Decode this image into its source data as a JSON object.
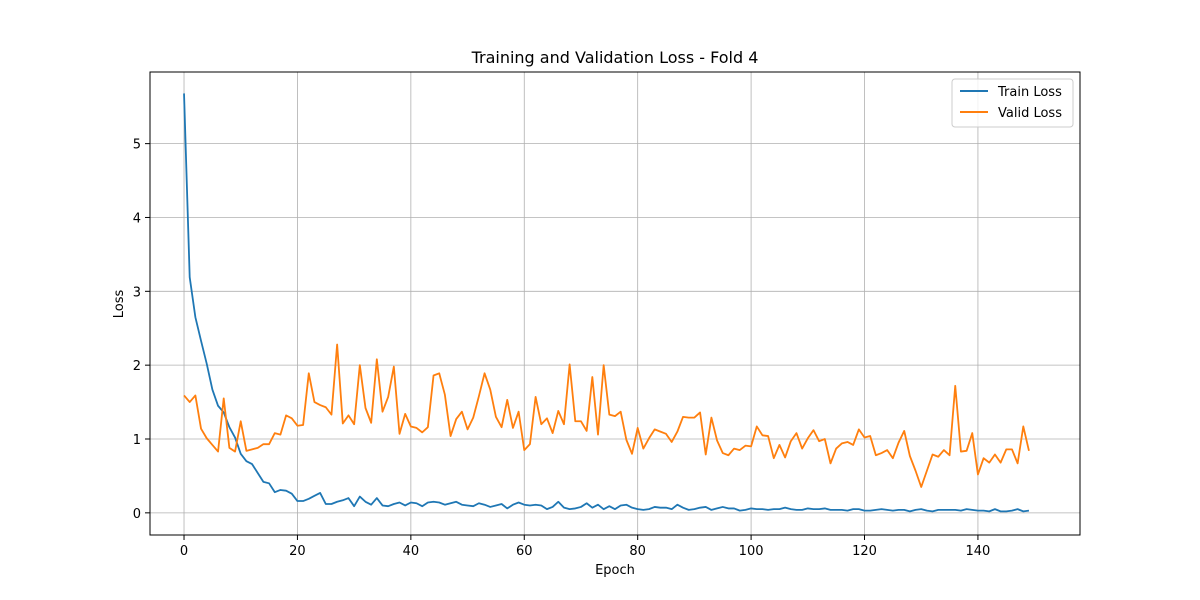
{
  "chart_data": {
    "type": "line",
    "title": "Training and Validation Loss - Fold 4",
    "xlabel": "Epoch",
    "ylabel": "Loss",
    "xlim": [
      -6,
      158
    ],
    "ylim": [
      -0.3,
      5.97
    ],
    "xticks": [
      0,
      20,
      40,
      60,
      80,
      100,
      120,
      140
    ],
    "yticks": [
      0,
      1,
      2,
      3,
      4,
      5
    ],
    "grid": true,
    "legend_position": "top-right",
    "series": [
      {
        "name": "Train Loss",
        "color": "#1f77b4",
        "values": [
          5.68,
          3.19,
          2.65,
          2.33,
          2.02,
          1.67,
          1.45,
          1.36,
          1.16,
          1.02,
          0.8,
          0.7,
          0.66,
          0.54,
          0.42,
          0.4,
          0.28,
          0.31,
          0.3,
          0.26,
          0.16,
          0.16,
          0.19,
          0.23,
          0.27,
          0.12,
          0.12,
          0.15,
          0.17,
          0.2,
          0.09,
          0.22,
          0.15,
          0.11,
          0.2,
          0.1,
          0.09,
          0.12,
          0.14,
          0.1,
          0.14,
          0.13,
          0.09,
          0.14,
          0.15,
          0.14,
          0.11,
          0.13,
          0.15,
          0.11,
          0.1,
          0.09,
          0.13,
          0.11,
          0.08,
          0.1,
          0.12,
          0.06,
          0.11,
          0.14,
          0.11,
          0.1,
          0.11,
          0.1,
          0.05,
          0.08,
          0.15,
          0.07,
          0.05,
          0.06,
          0.08,
          0.13,
          0.07,
          0.11,
          0.05,
          0.09,
          0.05,
          0.1,
          0.11,
          0.07,
          0.05,
          0.04,
          0.05,
          0.08,
          0.07,
          0.07,
          0.05,
          0.11,
          0.07,
          0.04,
          0.05,
          0.07,
          0.08,
          0.04,
          0.06,
          0.08,
          0.06,
          0.06,
          0.03,
          0.04,
          0.06,
          0.05,
          0.05,
          0.04,
          0.05,
          0.05,
          0.07,
          0.05,
          0.04,
          0.04,
          0.06,
          0.05,
          0.05,
          0.06,
          0.04,
          0.04,
          0.04,
          0.03,
          0.05,
          0.05,
          0.03,
          0.03,
          0.04,
          0.05,
          0.04,
          0.03,
          0.04,
          0.04,
          0.02,
          0.04,
          0.05,
          0.03,
          0.02,
          0.04,
          0.04,
          0.04,
          0.04,
          0.03,
          0.05,
          0.04,
          0.03,
          0.03,
          0.02,
          0.05,
          0.02,
          0.02,
          0.03,
          0.05,
          0.02,
          0.03
        ]
      },
      {
        "name": "Valid Loss",
        "color": "#ff7f0e",
        "values": [
          1.59,
          1.5,
          1.59,
          1.14,
          1.01,
          0.92,
          0.83,
          1.55,
          0.88,
          0.83,
          1.24,
          0.84,
          0.86,
          0.88,
          0.93,
          0.93,
          1.08,
          1.06,
          1.32,
          1.28,
          1.18,
          1.19,
          1.89,
          1.5,
          1.46,
          1.43,
          1.33,
          2.28,
          1.21,
          1.32,
          1.2,
          2.0,
          1.42,
          1.22,
          2.08,
          1.37,
          1.57,
          1.98,
          1.07,
          1.34,
          1.17,
          1.15,
          1.09,
          1.16,
          1.86,
          1.89,
          1.6,
          1.04,
          1.27,
          1.37,
          1.13,
          1.29,
          1.58,
          1.89,
          1.67,
          1.3,
          1.16,
          1.53,
          1.15,
          1.37,
          0.85,
          0.93,
          1.57,
          1.2,
          1.28,
          1.08,
          1.38,
          1.2,
          2.01,
          1.24,
          1.24,
          1.11,
          1.84,
          1.06,
          2.0,
          1.33,
          1.31,
          1.37,
          0.99,
          0.8,
          1.15,
          0.87,
          1.01,
          1.13,
          1.1,
          1.07,
          0.96,
          1.1,
          1.3,
          1.29,
          1.29,
          1.36,
          0.79,
          1.29,
          0.98,
          0.81,
          0.78,
          0.87,
          0.85,
          0.91,
          0.9,
          1.17,
          1.05,
          1.04,
          0.74,
          0.92,
          0.75,
          0.97,
          1.08,
          0.87,
          1.01,
          1.12,
          0.97,
          1.0,
          0.67,
          0.87,
          0.94,
          0.96,
          0.92,
          1.13,
          1.02,
          1.04,
          0.78,
          0.81,
          0.85,
          0.74,
          0.95,
          1.11,
          0.77,
          0.57,
          0.35,
          0.57,
          0.79,
          0.76,
          0.85,
          0.78,
          1.72,
          0.83,
          0.84,
          1.08,
          0.52,
          0.74,
          0.68,
          0.79,
          0.68,
          0.86,
          0.86,
          0.67,
          1.17,
          0.84
        ]
      }
    ]
  }
}
